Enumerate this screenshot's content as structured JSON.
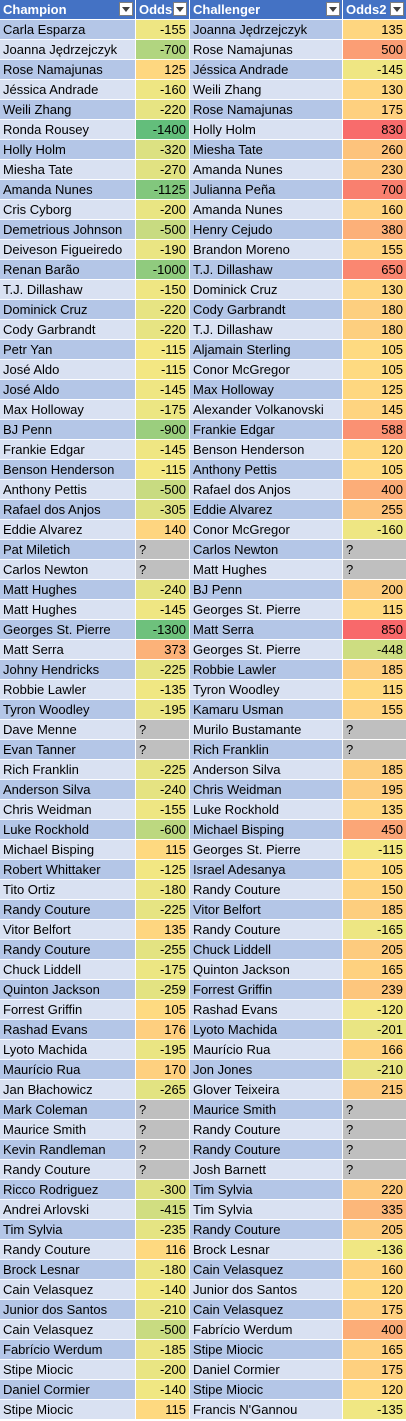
{
  "headers": [
    "Champion",
    "Odds",
    "Challenger",
    "Odds2"
  ],
  "rows": [
    [
      "Carla Esparza",
      "-155",
      "Joanna Jędrzejczyk",
      "135"
    ],
    [
      "Joanna Jędrzejczyk",
      "-700",
      "Rose Namajunas",
      "500"
    ],
    [
      "Rose Namajunas",
      "125",
      "Jéssica Andrade",
      "-145"
    ],
    [
      "Jéssica Andrade",
      "-160",
      "Weili Zhang",
      "130"
    ],
    [
      "Weili Zhang",
      "-220",
      "Rose Namajunas",
      "175"
    ],
    [
      "Ronda Rousey",
      "-1400",
      "Holly Holm",
      "830"
    ],
    [
      "Holly Holm",
      "-320",
      "Miesha Tate",
      "260"
    ],
    [
      "Miesha Tate",
      "-270",
      "Amanda Nunes",
      "230"
    ],
    [
      "Amanda Nunes",
      "-1125",
      "Julianna Peña",
      "700"
    ],
    [
      "Cris Cyborg",
      "-200",
      "Amanda Nunes",
      "160"
    ],
    [
      "Demetrious Johnson",
      "-500",
      "Henry Cejudo",
      "380"
    ],
    [
      "Deiveson Figueiredo",
      "-190",
      "Brandon Moreno",
      "155"
    ],
    [
      "Renan Barão",
      "-1000",
      "T.J. Dillashaw",
      "650"
    ],
    [
      "T.J. Dillashaw",
      "-150",
      "Dominick Cruz",
      "130"
    ],
    [
      "Dominick Cruz",
      "-220",
      "Cody Garbrandt",
      "180"
    ],
    [
      "Cody Garbrandt",
      "-220",
      "T.J. Dillashaw",
      "180"
    ],
    [
      "Petr Yan",
      "-115",
      "Aljamain Sterling",
      "105"
    ],
    [
      "José Aldo",
      "-115",
      "Conor McGregor",
      "105"
    ],
    [
      "José Aldo",
      "-145",
      "Max Holloway",
      "125"
    ],
    [
      "Max Holloway",
      "-175",
      "Alexander Volkanovski",
      "145"
    ],
    [
      "BJ Penn",
      "-900",
      "Frankie Edgar",
      "588"
    ],
    [
      "Frankie Edgar",
      "-145",
      "Benson Henderson",
      "120"
    ],
    [
      "Benson Henderson",
      "-115",
      "Anthony Pettis",
      "105"
    ],
    [
      "Anthony Pettis",
      "-500",
      "Rafael dos Anjos",
      "400"
    ],
    [
      "Rafael dos Anjos",
      "-305",
      "Eddie Alvarez",
      "255"
    ],
    [
      "Eddie Alvarez",
      "140",
      "Conor McGregor",
      "-160"
    ],
    [
      "Pat Miletich",
      "?",
      "Carlos Newton",
      "?"
    ],
    [
      "Carlos Newton",
      "?",
      "Matt Hughes",
      "?"
    ],
    [
      "Matt Hughes",
      "-240",
      "BJ Penn",
      "200"
    ],
    [
      "Matt Hughes",
      "-145",
      "Georges St. Pierre",
      "115"
    ],
    [
      "Georges St. Pierre",
      "-1300",
      "Matt Serra",
      "850"
    ],
    [
      "Matt Serra",
      "373",
      "Georges St. Pierre",
      "-448"
    ],
    [
      "Johny Hendricks",
      "-225",
      "Robbie Lawler",
      "185"
    ],
    [
      "Robbie Lawler",
      "-135",
      "Tyron Woodley",
      "115"
    ],
    [
      "Tyron Woodley",
      "-195",
      "Kamaru Usman",
      "155"
    ],
    [
      "Dave Menne",
      "?",
      "Murilo Bustamante",
      "?"
    ],
    [
      "Evan Tanner",
      "?",
      "Rich Franklin",
      "?"
    ],
    [
      "Rich Franklin",
      "-225",
      "Anderson Silva",
      "185"
    ],
    [
      "Anderson Silva",
      "-240",
      "Chris Weidman",
      "195"
    ],
    [
      "Chris Weidman",
      "-155",
      "Luke Rockhold",
      "135"
    ],
    [
      "Luke Rockhold",
      "-600",
      "Michael Bisping",
      "450"
    ],
    [
      "Michael Bisping",
      "115",
      "Georges St. Pierre",
      "-115"
    ],
    [
      "Robert Whittaker",
      "-125",
      "Israel Adesanya",
      "105"
    ],
    [
      "Tito Ortiz",
      "-180",
      "Randy Couture",
      "150"
    ],
    [
      "Randy Couture",
      "-225",
      "Vitor Belfort",
      "185"
    ],
    [
      "Vitor Belfort",
      "135",
      "Randy Couture",
      "-165"
    ],
    [
      "Randy Couture",
      "-255",
      "Chuck Liddell",
      "205"
    ],
    [
      "Chuck Liddell",
      "-175",
      "Quinton Jackson",
      "165"
    ],
    [
      "Quinton Jackson",
      "-259",
      "Forrest Griffin",
      "239"
    ],
    [
      "Forrest Griffin",
      "105",
      "Rashad Evans",
      "-120"
    ],
    [
      "Rashad Evans",
      "176",
      "Lyoto Machida",
      "-201"
    ],
    [
      "Lyoto Machida",
      "-195",
      "Maurício Rua",
      "166"
    ],
    [
      "Maurício Rua",
      "170",
      "Jon Jones",
      "-210"
    ],
    [
      "Jan Błachowicz",
      "-265",
      "Glover Teixeira",
      "215"
    ],
    [
      "Mark Coleman",
      "?",
      "Maurice Smith",
      "?"
    ],
    [
      "Maurice Smith",
      "?",
      "Randy Couture",
      "?"
    ],
    [
      "Kevin Randleman",
      "?",
      "Randy Couture",
      "?"
    ],
    [
      "Randy Couture",
      "?",
      "Josh Barnett",
      "?"
    ],
    [
      "Ricco Rodriguez",
      "-300",
      "Tim Sylvia",
      "220"
    ],
    [
      "Andrei Arlovski",
      "-415",
      "Tim Sylvia",
      "335"
    ],
    [
      "Tim Sylvia",
      "-235",
      "Randy Couture",
      "205"
    ],
    [
      "Randy Couture",
      "116",
      "Brock Lesnar",
      "-136"
    ],
    [
      "Brock Lesnar",
      "-180",
      "Cain Velasquez",
      "160"
    ],
    [
      "Cain Velasquez",
      "-140",
      "Junior dos Santos",
      "120"
    ],
    [
      "Junior dos Santos",
      "-210",
      "Cain Velasquez",
      "175"
    ],
    [
      "Cain Velasquez",
      "-500",
      "Fabrício Werdum",
      "400"
    ],
    [
      "Fabrício Werdum",
      "-185",
      "Stipe Miocic",
      "165"
    ],
    [
      "Stipe Miocic",
      "-200",
      "Daniel Cormier",
      "175"
    ],
    [
      "Daniel Cormier",
      "-140",
      "Stipe Miocic",
      "120"
    ],
    [
      "Stipe Miocic",
      "115",
      "Francis N'Gannou",
      "-135"
    ]
  ],
  "colors": {
    "header_bg": "#4472c4",
    "header_text": "#ffffff",
    "band_dark": "#b4c6e7",
    "band_light": "#d9e1f2",
    "missing_odds": "#bfbfbf",
    "scale_low": "#63be7b",
    "scale_mid": "#ffeb84",
    "scale_high": "#f8696b"
  }
}
